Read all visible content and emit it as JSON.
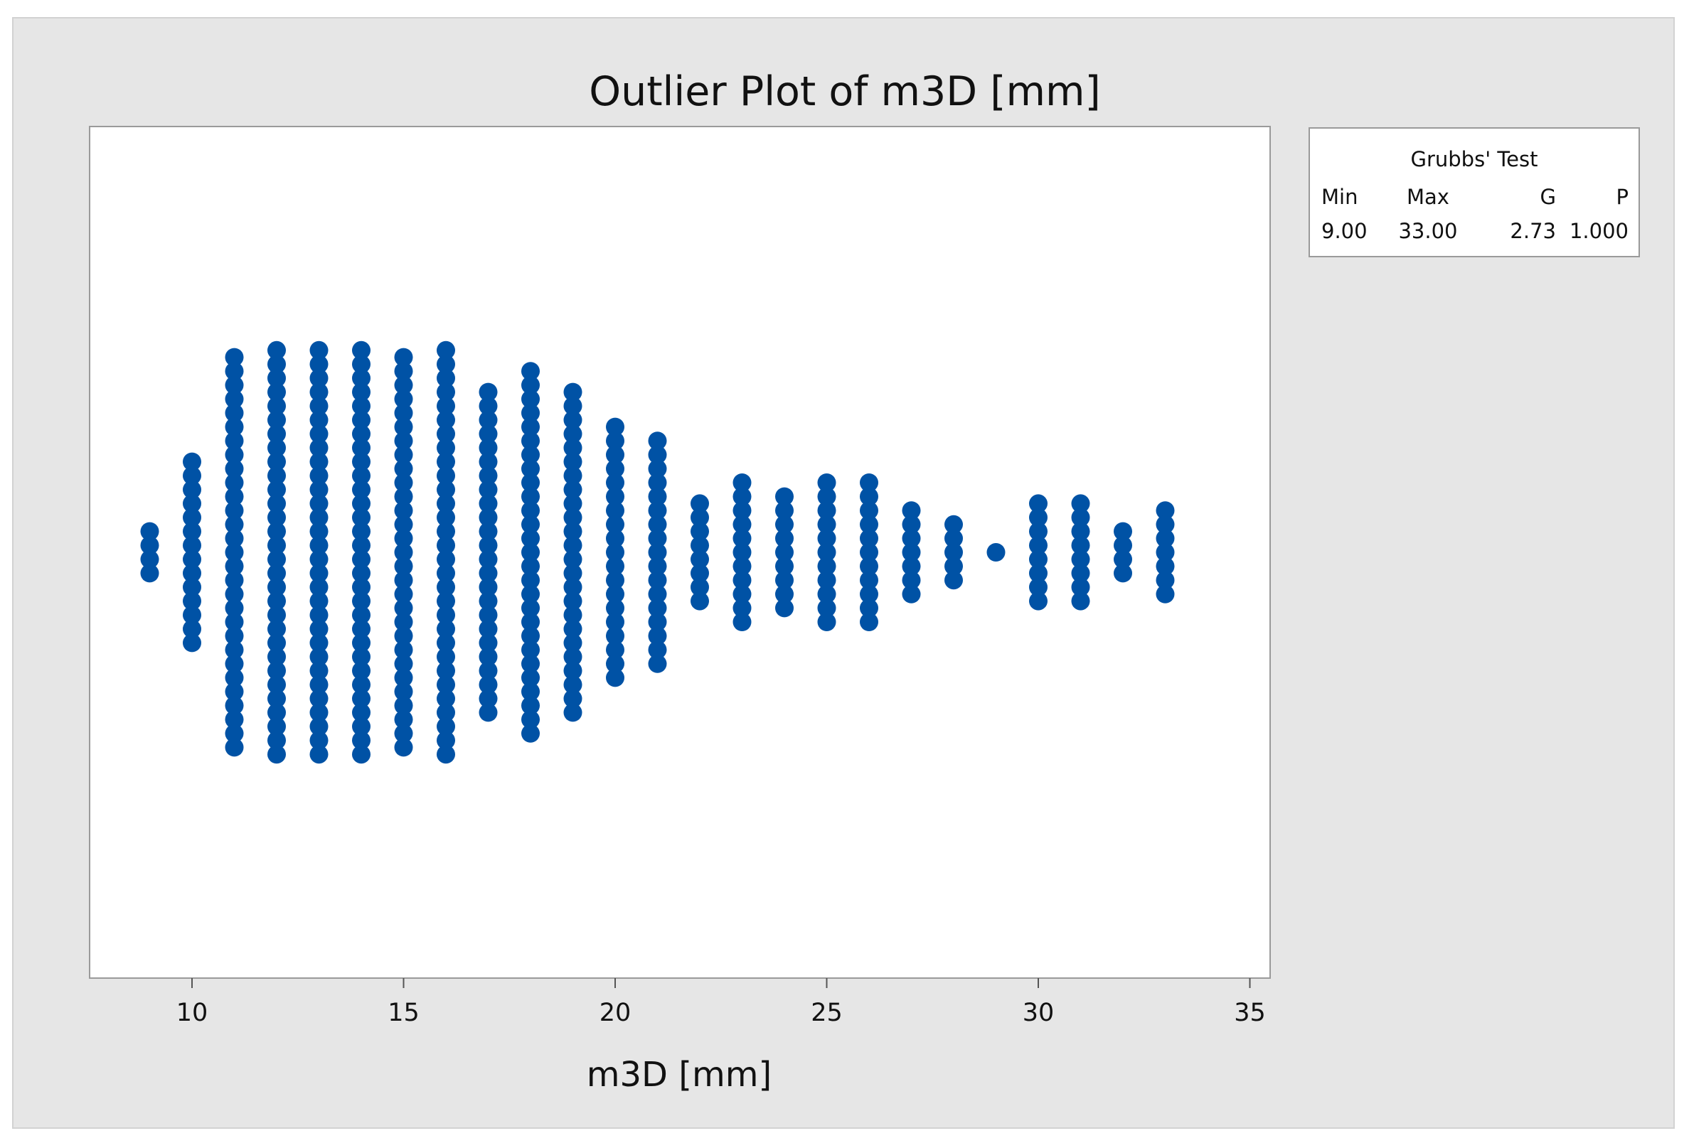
{
  "chart_data": {
    "type": "scatter",
    "title": "Outlier Plot of m3D [mm]",
    "xlabel": "m3D [mm]",
    "ylabel": "",
    "xlim": [
      7.5,
      35
    ],
    "xticks": [
      10,
      15,
      20,
      25,
      30,
      35
    ],
    "grid": false,
    "marker_color": "#0052a5",
    "columns": [
      {
        "x": 9,
        "count": 4
      },
      {
        "x": 10,
        "count": 14
      },
      {
        "x": 11,
        "count": 29
      },
      {
        "x": 12,
        "count": 30
      },
      {
        "x": 13,
        "count": 30
      },
      {
        "x": 14,
        "count": 30
      },
      {
        "x": 15,
        "count": 29
      },
      {
        "x": 16,
        "count": 30
      },
      {
        "x": 17,
        "count": 24
      },
      {
        "x": 18,
        "count": 27
      },
      {
        "x": 19,
        "count": 24
      },
      {
        "x": 20,
        "count": 19
      },
      {
        "x": 21,
        "count": 17
      },
      {
        "x": 22,
        "count": 8
      },
      {
        "x": 23,
        "count": 11
      },
      {
        "x": 24,
        "count": 9
      },
      {
        "x": 25,
        "count": 11
      },
      {
        "x": 26,
        "count": 11
      },
      {
        "x": 27,
        "count": 7
      },
      {
        "x": 28,
        "count": 5
      },
      {
        "x": 29,
        "count": 1
      },
      {
        "x": 30,
        "count": 8
      },
      {
        "x": 31,
        "count": 8
      },
      {
        "x": 32,
        "count": 4
      },
      {
        "x": 33,
        "count": 7
      }
    ],
    "grubbs_test": {
      "title": "Grubbs' Test",
      "headers": [
        "Min",
        "Max",
        "G",
        "P"
      ],
      "values": [
        "9.00",
        "33.00",
        "2.73",
        "1.000"
      ]
    }
  }
}
